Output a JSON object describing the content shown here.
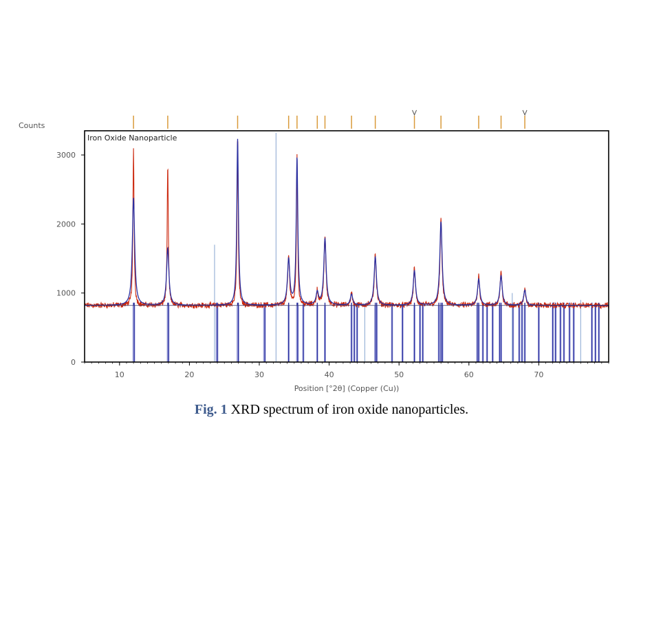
{
  "caption": {
    "label": "Fig. 1",
    "text": "XRD spectrum of iron oxide nanoparticles."
  },
  "colors": {
    "observed": "#cc2a10",
    "fit": "#2a2fa0",
    "reference_sticks": "#2a2fa0",
    "reference_fill": "#b8bce6",
    "light_lines": "#9ab4d8",
    "peak_ticks": "#d99a3a",
    "frame": "#000000"
  },
  "chart_data": {
    "type": "line",
    "title": "Iron Oxide Nanoparticle",
    "xlabel": "Position [°2θ] (Copper (Cu))",
    "ylabel": "Counts",
    "xlim": [
      5,
      80
    ],
    "ylim": [
      0,
      3350
    ],
    "x_ticks": [
      10,
      20,
      30,
      40,
      50,
      60,
      70
    ],
    "y_ticks": [
      0,
      1000,
      2000,
      3000
    ],
    "grid": false,
    "legend": "none",
    "background_level": 820,
    "series": [
      {
        "role": "observed",
        "peaks": [
          {
            "x": 12.0,
            "y": 3100
          },
          {
            "x": 16.9,
            "y": 2850
          },
          {
            "x": 26.9,
            "y": 3280
          },
          {
            "x": 34.2,
            "y": 1530
          },
          {
            "x": 35.4,
            "y": 2980
          },
          {
            "x": 38.3,
            "y": 1030
          },
          {
            "x": 39.4,
            "y": 1840
          },
          {
            "x": 43.2,
            "y": 1000
          },
          {
            "x": 46.6,
            "y": 1580
          },
          {
            "x": 52.2,
            "y": 1360
          },
          {
            "x": 56.0,
            "y": 2070
          },
          {
            "x": 61.4,
            "y": 1250
          },
          {
            "x": 64.6,
            "y": 1300
          },
          {
            "x": 68.0,
            "y": 1070
          }
        ]
      },
      {
        "role": "fit",
        "peaks": [
          {
            "x": 12.0,
            "y": 2380
          },
          {
            "x": 16.9,
            "y": 1650
          },
          {
            "x": 26.9,
            "y": 3230
          },
          {
            "x": 34.2,
            "y": 1480
          },
          {
            "x": 35.4,
            "y": 2950
          },
          {
            "x": 38.3,
            "y": 1000
          },
          {
            "x": 39.4,
            "y": 1780
          },
          {
            "x": 43.2,
            "y": 980
          },
          {
            "x": 46.6,
            "y": 1520
          },
          {
            "x": 52.2,
            "y": 1320
          },
          {
            "x": 56.0,
            "y": 2030
          },
          {
            "x": 61.4,
            "y": 1200
          },
          {
            "x": 64.6,
            "y": 1250
          },
          {
            "x": 68.0,
            "y": 1040
          }
        ]
      }
    ],
    "reference_lines": [
      12.0,
      12.1,
      16.9,
      17.0,
      23.9,
      24.0,
      26.9,
      27.0,
      30.7,
      30.8,
      34.2,
      35.4,
      35.5,
      36.3,
      38.3,
      39.4,
      43.2,
      43.6,
      44.0,
      46.6,
      46.8,
      49.0,
      50.5,
      52.2,
      53.0,
      53.4,
      55.7,
      56.0,
      56.2,
      61.2,
      61.4,
      62.0,
      62.6,
      63.4,
      64.4,
      64.6,
      66.3,
      67.2,
      67.6,
      68.0,
      70.0,
      72.0,
      72.4,
      73.1,
      73.6,
      74.4,
      75.0,
      77.6,
      78.1,
      78.6
    ],
    "light_lines": [
      {
        "x": 23.6,
        "y": 1700
      },
      {
        "x": 32.4,
        "y": 3320
      },
      {
        "x": 45.1,
        "y": 800
      },
      {
        "x": 66.2,
        "y": 1000
      },
      {
        "x": 76.0,
        "y": 900
      }
    ],
    "peak_markers": [
      12.0,
      16.9,
      26.9,
      34.2,
      35.4,
      38.3,
      39.4,
      43.2,
      46.6,
      52.2,
      56.0,
      61.4,
      64.6,
      68.0
    ],
    "peak_markers_flagged": [
      52.2,
      68.0
    ]
  }
}
